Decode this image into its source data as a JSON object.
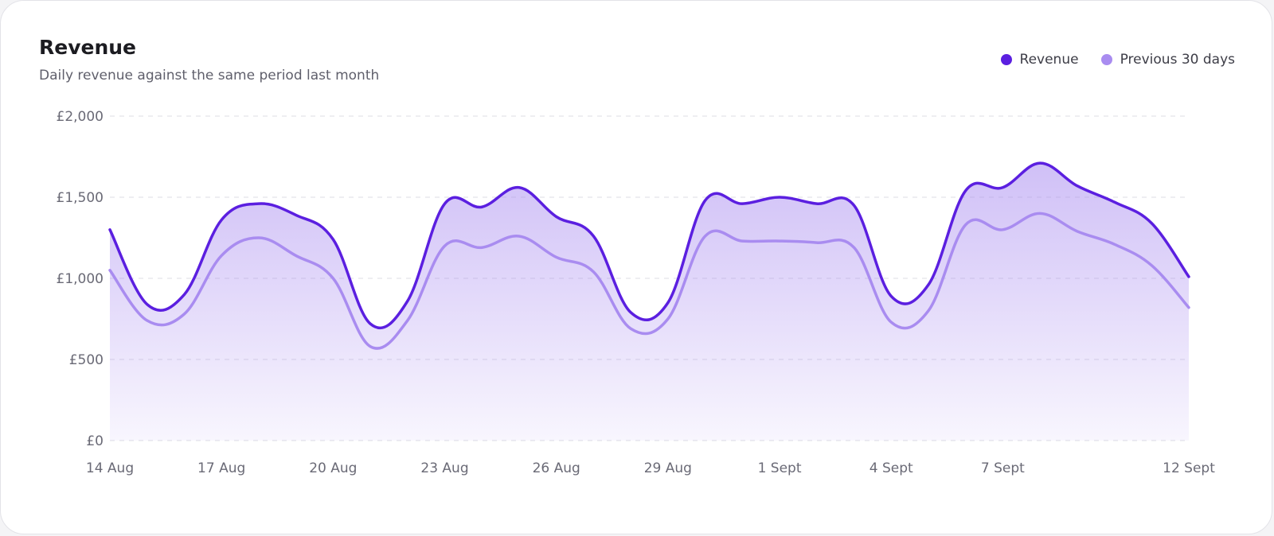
{
  "card": {
    "title": "Revenue",
    "subtitle": "Daily revenue against the same period last month"
  },
  "legend": [
    {
      "label": "Revenue",
      "color": "#5b1fe0"
    },
    {
      "label": "Previous 30 days",
      "color": "#a98cf0"
    }
  ],
  "chart_data": {
    "type": "area",
    "x_tick_labels": [
      "14 Aug",
      "17 Aug",
      "20 Aug",
      "23 Aug",
      "26 Aug",
      "29 Aug",
      "1 Sept",
      "4 Sept",
      "7 Sept",
      "12 Sept"
    ],
    "x_tick_index": [
      0,
      3,
      6,
      9,
      12,
      15,
      18,
      21,
      24,
      29
    ],
    "y_tick_labels": [
      "£0",
      "£500",
      "£1,000",
      "£1,500",
      "£2,000"
    ],
    "y_ticks": [
      0,
      500,
      1000,
      1500,
      2000
    ],
    "ylim": [
      0,
      2000
    ],
    "grid": true,
    "legend_position": "top-right",
    "x": [
      "14 Aug",
      "15 Aug",
      "16 Aug",
      "17 Aug",
      "18 Aug",
      "19 Aug",
      "20 Aug",
      "21 Aug",
      "22 Aug",
      "23 Aug",
      "24 Aug",
      "25 Aug",
      "26 Aug",
      "27 Aug",
      "28 Aug",
      "29 Aug",
      "30 Aug",
      "31 Aug",
      "1 Sept",
      "2 Sept",
      "3 Sept",
      "4 Sept",
      "5 Sept",
      "6 Sept",
      "7 Sept",
      "8 Sept",
      "9 Sept",
      "10 Sept",
      "11 Sept",
      "12 Sept"
    ],
    "series": [
      {
        "name": "Revenue",
        "color": "#5b1fe0",
        "values": [
          1300,
          840,
          900,
          1360,
          1460,
          1390,
          1240,
          720,
          860,
          1460,
          1440,
          1560,
          1380,
          1260,
          790,
          850,
          1480,
          1460,
          1500,
          1460,
          1450,
          890,
          960,
          1540,
          1560,
          1710,
          1570,
          1470,
          1340,
          1010
        ]
      },
      {
        "name": "Previous 30 days",
        "color": "#a98cf0",
        "values": [
          1050,
          740,
          780,
          1140,
          1250,
          1140,
          1000,
          580,
          740,
          1200,
          1190,
          1260,
          1130,
          1040,
          690,
          750,
          1260,
          1230,
          1230,
          1220,
          1190,
          730,
          800,
          1330,
          1300,
          1400,
          1290,
          1210,
          1080,
          820
        ]
      }
    ]
  }
}
